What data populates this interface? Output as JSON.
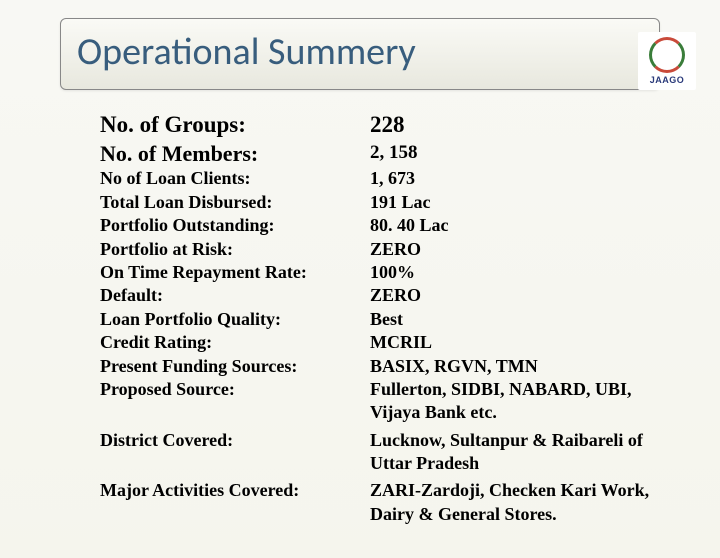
{
  "title": "Operational Summery",
  "logo": {
    "text": "JAAGO"
  },
  "rows": [
    {
      "label": "No. of Groups:",
      "value": "228",
      "style": "big"
    },
    {
      "label": "No. of Members:",
      "value": "2, 158",
      "style": "big2"
    },
    {
      "label": "No of Loan Clients:",
      "value": "1, 673",
      "style": "normal"
    },
    {
      "label": "Total Loan Disbursed:",
      "value": "191 Lac",
      "style": "normal"
    },
    {
      "label": "Portfolio Outstanding:",
      "value": "80. 40 Lac",
      "style": "normal"
    },
    {
      "label": "Portfolio at Risk:",
      "value": "ZERO",
      "style": "normal"
    },
    {
      "label": "On Time Repayment Rate:",
      "value": "100%",
      "style": "normal"
    },
    {
      "label": "Default:",
      "value": "ZERO",
      "style": "normal"
    },
    {
      "label": "Loan Portfolio Quality:",
      "value": "Best",
      "style": "normal"
    },
    {
      "label": "Credit Rating:",
      "value": "MCRIL",
      "style": "normal"
    },
    {
      "label": "Present Funding Sources:",
      "value": "BASIX, RGVN, TMN",
      "style": "normal"
    },
    {
      "label": "Proposed Source:",
      "value": "Fullerton, SIDBI, NABARD, UBI, Vijaya Bank etc.",
      "style": "normal"
    },
    {
      "label": "District Covered:",
      "value": "Lucknow, Sultanpur & Raibareli of Uttar Pradesh",
      "style": "normal spaced-top"
    },
    {
      "label": "Major Activities Covered:",
      "value": "ZARI-Zardoji, Checken Kari Work, Dairy & General Stores.",
      "style": "normal spaced-top"
    }
  ],
  "colors": {
    "title": "#385d7d",
    "text": "#000000",
    "background_top": "#f8f8f4",
    "background_bottom": "#f5f5ed",
    "title_border": "#888888"
  },
  "fonts": {
    "title_family": "Calibri",
    "body_family": "Times New Roman",
    "title_size_pt": 28,
    "big_size_pt": 17,
    "normal_size_pt": 13
  }
}
